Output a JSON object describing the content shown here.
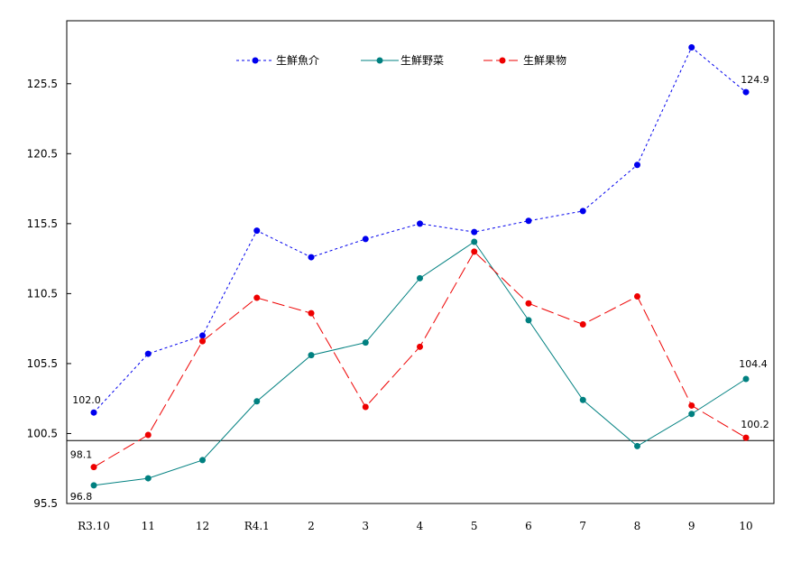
{
  "chart_data": {
    "type": "line",
    "title": "",
    "xlabel": "",
    "ylabel": "",
    "categories": [
      "R3.10",
      "11",
      "12",
      "R4.1",
      "2",
      "3",
      "4",
      "5",
      "6",
      "7",
      "8",
      "9",
      "10"
    ],
    "ylim": [
      95.5,
      130.0
    ],
    "yticks": [
      "95.5",
      "100.5",
      "105.5",
      "110.5",
      "115.5",
      "120.5",
      "125.5"
    ],
    "reference_line": 100.0,
    "grid": false,
    "legend_position": "top",
    "series": [
      {
        "name": "生鮮魚介",
        "color": "#0000ee",
        "dash": "3,3",
        "values": [
          102.0,
          106.2,
          107.5,
          115.0,
          113.1,
          114.4,
          115.5,
          114.9,
          115.7,
          116.4,
          119.7,
          128.1,
          124.9
        ]
      },
      {
        "name": "生鮮野菜",
        "color": "#008080",
        "dash": "",
        "values": [
          96.8,
          97.3,
          98.6,
          102.8,
          106.1,
          107.0,
          111.6,
          114.2,
          108.6,
          102.9,
          99.6,
          101.9,
          104.4
        ]
      },
      {
        "name": "生鮮果物",
        "color": "#ee0000",
        "dash": "14,5",
        "values": [
          98.1,
          100.4,
          107.1,
          110.2,
          109.1,
          102.4,
          106.7,
          113.5,
          109.8,
          108.3,
          110.3,
          102.5,
          100.2
        ]
      }
    ],
    "data_labels": [
      {
        "series": 0,
        "index": 0,
        "text": "102.0"
      },
      {
        "series": 0,
        "index": 12,
        "text": "124.9"
      },
      {
        "series": 1,
        "index": 0,
        "text": "96.8"
      },
      {
        "series": 1,
        "index": 12,
        "text": "104.4"
      },
      {
        "series": 2,
        "index": 0,
        "text": "98.1"
      },
      {
        "series": 2,
        "index": 12,
        "text": "100.2"
      }
    ]
  }
}
